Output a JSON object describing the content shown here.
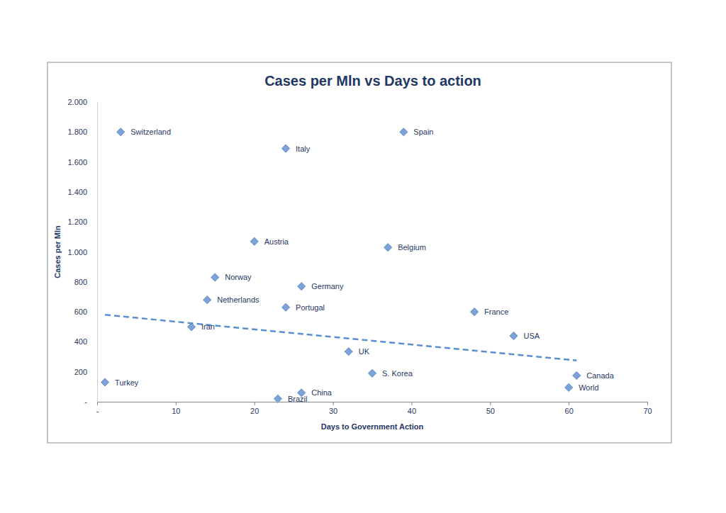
{
  "chart_data": {
    "type": "scatter",
    "title": "Cases per Mln vs Days to action",
    "x_label": "Days to Government Action",
    "y_label": "Cases per Mln",
    "xlim": [
      0,
      70
    ],
    "ylim": [
      0,
      2000
    ],
    "xticks": [
      {
        "value": 0,
        "label": "-"
      },
      10,
      20,
      30,
      40,
      50,
      60,
      70
    ],
    "yticks": [
      {
        "value": 0,
        "label": "-"
      },
      200,
      400,
      600,
      800,
      {
        "value": 1000,
        "label": "1.000"
      },
      {
        "value": 1200,
        "label": "1.200"
      },
      {
        "value": 1400,
        "label": "1.400"
      },
      {
        "value": 1600,
        "label": "1.600"
      },
      {
        "value": 1800,
        "label": "1.800"
      },
      {
        "value": 2000,
        "label": "2.000"
      }
    ],
    "grid": false,
    "series": [
      {
        "type": "scatter",
        "marker": "diamond",
        "color": "#7ba3d8",
        "categories": [
          "Switzerland",
          "Spain",
          "Italy",
          "Austria",
          "Belgium",
          "Norway",
          "Germany",
          "Netherlands",
          "Portugal",
          "France",
          "Iran",
          "USA",
          "UK",
          "S. Korea",
          "Canada",
          "World",
          "Turkey",
          "China",
          "Brazil"
        ],
        "x": [
          3,
          39,
          24,
          20,
          37,
          15,
          26,
          14,
          24,
          48,
          12,
          53,
          32,
          35,
          61,
          60,
          1,
          26,
          23
        ],
        "values": [
          1800,
          1800,
          1690,
          1070,
          1030,
          830,
          770,
          680,
          630,
          600,
          500,
          440,
          335,
          190,
          175,
          95,
          130,
          60,
          20
        ]
      },
      {
        "type": "line",
        "line_style": "dashed",
        "color": "#5a8ed0",
        "x": [
          1,
          61
        ],
        "values": [
          580,
          275
        ]
      }
    ]
  }
}
